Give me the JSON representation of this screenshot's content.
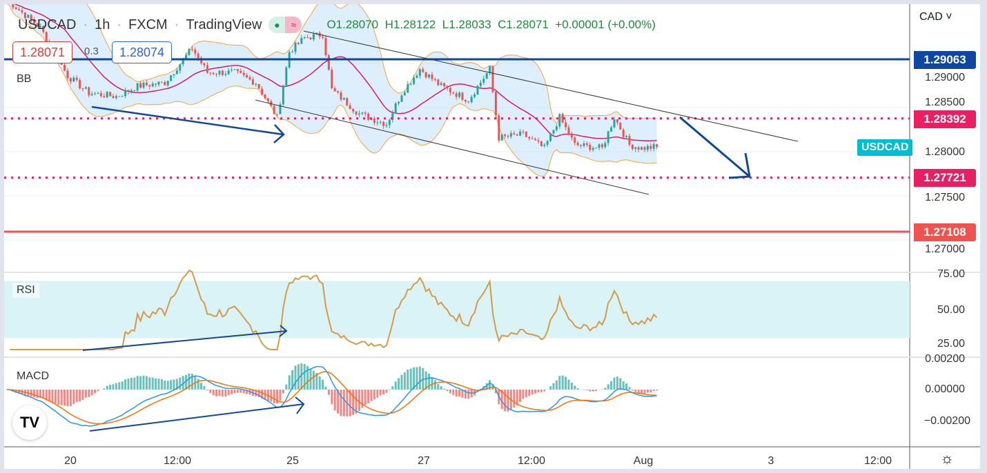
{
  "header": {
    "symbol": "USDCAD",
    "interval": "1h",
    "exchange": "FXCM",
    "source": "TradingView",
    "open": "O1.28070",
    "high": "H1.28122",
    "low": "L1.28033",
    "close": "C1.28071",
    "change": "+0.00001 (+0.00%)",
    "bid": "1.28071",
    "spread": "0.3",
    "ask": "1.28074"
  },
  "axis": {
    "currency": "CAD",
    "price_ticks": [
      "1.29000",
      "1.28500",
      "1.28000",
      "1.27500",
      "1.27000"
    ],
    "rsi_ticks": [
      "75.00",
      "50.00",
      "25.00"
    ],
    "macd_ticks": [
      "0.00200",
      "0.00000",
      "−0.00200"
    ],
    "time_labels": [
      "20",
      "12:00",
      "25",
      "27",
      "12:00",
      "Aug",
      "3",
      "12:00"
    ]
  },
  "levels": [
    {
      "price": "1.29063",
      "color": "#0d47a1",
      "style": "solid"
    },
    {
      "price": "1.28392",
      "color": "#e91e63",
      "style": "dotted"
    },
    {
      "price": "1.27721",
      "color": "#e91e63",
      "style": "dotted"
    },
    {
      "price": "1.27108",
      "color": "#ef5350",
      "style": "solid"
    }
  ],
  "symbol_tag": "USDCAD",
  "panes": {
    "bb": "BB",
    "rsi": "RSI",
    "macd": "MACD"
  },
  "colors": {
    "up": "#26a69a",
    "down": "#ef5350",
    "bb_fill": "#bbdefb",
    "bb_band": "#f7a43a",
    "bb_mid": "#d81b60",
    "rsi_line": "#d79a44",
    "arrow": "#0d47a1",
    "macd": "#2196f3",
    "signal": "#ff6d00"
  },
  "chart_data": {
    "type": "candlestick",
    "title": "USDCAD 1h FXCM",
    "anchors": [
      [
        0,
        1.2974
      ],
      [
        11,
        1.2942
      ],
      [
        20,
        1.28875
      ],
      [
        27,
        1.2868
      ],
      [
        36,
        1.28641
      ],
      [
        43,
        1.28758
      ],
      [
        52,
        1.28797
      ],
      [
        61,
        1.29188
      ],
      [
        66,
        1.28914
      ],
      [
        75,
        1.28914
      ],
      [
        82,
        1.28797
      ],
      [
        89,
        1.28406
      ],
      [
        93,
        1.29149
      ],
      [
        98,
        1.29305
      ],
      [
        104,
        1.29345
      ],
      [
        107,
        1.28719
      ],
      [
        116,
        1.28445
      ],
      [
        125,
        1.28328
      ],
      [
        130,
        1.2868
      ],
      [
        136,
        1.28953
      ],
      [
        143,
        1.28758
      ],
      [
        152,
        1.28602
      ],
      [
        159,
        1.28953
      ],
      [
        162,
        1.28172
      ],
      [
        170,
        1.28211
      ],
      [
        177,
        1.28054
      ],
      [
        182,
        1.28406
      ],
      [
        187,
        1.28093
      ],
      [
        196,
        1.28054
      ],
      [
        200,
        1.28406
      ],
      [
        205,
        1.28093
      ],
      [
        209,
        1.28054
      ],
      [
        214,
        1.28071
      ]
    ],
    "ylim": [
      1.267,
      1.297
    ]
  }
}
